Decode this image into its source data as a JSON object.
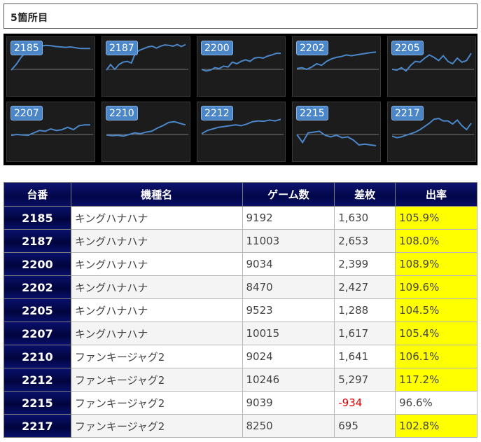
{
  "section": {
    "title": "5箇所目"
  },
  "colors": {
    "header_bg": "#02064a",
    "line": "#4a86c8",
    "highlight": "#ffff00",
    "negative": "#e00000"
  },
  "table": {
    "headers": [
      "台番",
      "機種名",
      "ゲーム数",
      "差枚",
      "出率"
    ],
    "rows": [
      {
        "no": "2185",
        "machine": "キングハナハナ",
        "games": "9192",
        "diff": "1,630",
        "rate": "105.9%",
        "highlight": true,
        "negative": false
      },
      {
        "no": "2187",
        "machine": "キングハナハナ",
        "games": "11003",
        "diff": "2,653",
        "rate": "108.0%",
        "highlight": true,
        "negative": false
      },
      {
        "no": "2200",
        "machine": "キングハナハナ",
        "games": "9034",
        "diff": "2,399",
        "rate": "108.9%",
        "highlight": true,
        "negative": false
      },
      {
        "no": "2202",
        "machine": "キングハナハナ",
        "games": "8470",
        "diff": "2,427",
        "rate": "109.6%",
        "highlight": true,
        "negative": false
      },
      {
        "no": "2205",
        "machine": "キングハナハナ",
        "games": "9523",
        "diff": "1,288",
        "rate": "104.5%",
        "highlight": true,
        "negative": false
      },
      {
        "no": "2207",
        "machine": "キングハナハナ",
        "games": "10015",
        "diff": "1,617",
        "rate": "105.4%",
        "highlight": true,
        "negative": false
      },
      {
        "no": "2210",
        "machine": "ファンキージャグ2",
        "games": "9024",
        "diff": "1,641",
        "rate": "106.1%",
        "highlight": true,
        "negative": false
      },
      {
        "no": "2212",
        "machine": "ファンキージャグ2",
        "games": "10246",
        "diff": "5,297",
        "rate": "117.2%",
        "highlight": true,
        "negative": false
      },
      {
        "no": "2215",
        "machine": "ファンキージャグ2",
        "games": "9039",
        "diff": "-934",
        "rate": "96.6%",
        "highlight": false,
        "negative": true
      },
      {
        "no": "2217",
        "machine": "ファンキージャグ2",
        "games": "8250",
        "diff": "695",
        "rate": "102.8%",
        "highlight": true,
        "negative": false
      }
    ]
  },
  "chart_data": [
    {
      "type": "line",
      "title": "2185",
      "y": [
        -2,
        12,
        30,
        44,
        52,
        55,
        58,
        60,
        59,
        57,
        56,
        55,
        56,
        54,
        52,
        52,
        52
      ]
    },
    {
      "type": "line",
      "title": "2187",
      "y": [
        -2,
        12,
        0,
        12,
        18,
        20,
        16,
        42,
        48,
        52,
        56,
        58,
        53,
        58,
        61,
        60,
        58,
        62,
        57,
        62
      ]
    },
    {
      "type": "line",
      "title": "2200",
      "y": [
        0,
        -4,
        -2,
        4,
        2,
        8,
        6,
        18,
        14,
        20,
        24,
        20,
        28,
        30,
        28,
        33,
        36,
        40,
        40
      ]
    },
    {
      "type": "line",
      "title": "2202",
      "y": [
        2,
        4,
        0,
        6,
        14,
        10,
        20,
        26,
        30,
        32,
        36,
        34,
        36,
        38,
        40,
        42,
        43
      ]
    },
    {
      "type": "line",
      "title": "2205",
      "y": [
        0,
        -2,
        4,
        -4,
        10,
        20,
        18,
        28,
        36,
        30,
        22,
        34,
        20,
        14,
        28,
        18,
        22,
        40
      ]
    },
    {
      "type": "line",
      "title": "2207",
      "y": [
        -2,
        0,
        -1,
        -2,
        4,
        10,
        8,
        14,
        10,
        12,
        18,
        12,
        22,
        24,
        24
      ]
    },
    {
      "type": "line",
      "title": "2210",
      "y": [
        -1,
        -3,
        -2,
        -4,
        0,
        4,
        2,
        6,
        8,
        16,
        22,
        30,
        32,
        28,
        24
      ]
    },
    {
      "type": "line",
      "title": "2212",
      "y": [
        2,
        10,
        14,
        18,
        20,
        22,
        24,
        22,
        26,
        32,
        34,
        33,
        36,
        34,
        38
      ]
    },
    {
      "type": "line",
      "title": "2215",
      "y": [
        0,
        -20,
        4,
        6,
        8,
        -2,
        -6,
        -2,
        -8,
        -6,
        -14,
        -26,
        -24,
        -26,
        -28
      ]
    },
    {
      "type": "line",
      "title": "2217",
      "y": [
        -4,
        -8,
        -6,
        -2,
        2,
        6,
        12,
        20,
        28,
        38,
        40,
        34,
        34,
        26,
        36,
        22,
        12,
        28
      ]
    }
  ]
}
